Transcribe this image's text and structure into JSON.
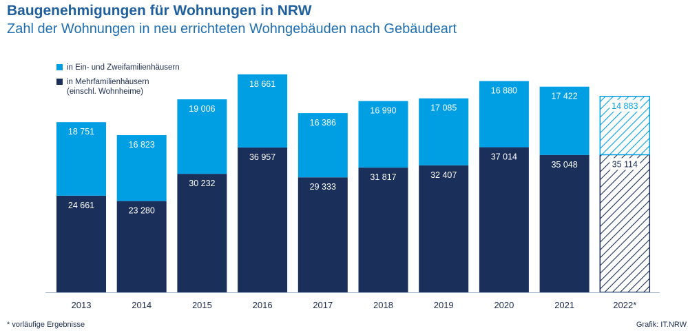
{
  "header": {
    "title": "Baugenehmigungen für Wohnungen in NRW",
    "subtitle": "Zahl der Wohnungen in neu errichteten Wohngebäuden nach Gebäudeart"
  },
  "legend": {
    "items": [
      {
        "label_lines": [
          "in Ein- und Zweifamilienhäusern"
        ],
        "color": "#009fe3"
      },
      {
        "label_lines": [
          "in Mehrfamilienhäusern",
          "(einschl. Wohnheime)"
        ],
        "color": "#1b2f5b"
      }
    ]
  },
  "footer": {
    "footnote": "* vorläufige Ergebnisse",
    "source": "Grafik: IT.NRW"
  },
  "chart_data": {
    "type": "bar",
    "stacked": true,
    "categories": [
      "2013",
      "2014",
      "2015",
      "2016",
      "2017",
      "2018",
      "2019",
      "2020",
      "2021",
      "2022*"
    ],
    "data_labels": {
      "Ein- und Zweifamilienhäuser": [
        "18 751",
        "16 823",
        "19 006",
        "18 661",
        "16 386",
        "16 990",
        "17 085",
        "16 880",
        "17 422",
        "14 883"
      ],
      "Mehrfamilienhäuser": [
        "24 661",
        "23 280",
        "30 232",
        "36 957",
        "29 333",
        "31 817",
        "32 407",
        "37 014",
        "35 048",
        "35 114"
      ]
    },
    "series": [
      {
        "name": "in Ein- und Zweifamilienhäusern",
        "color": "#009fe3",
        "values": [
          18751,
          16823,
          19006,
          18661,
          16386,
          16990,
          17085,
          16880,
          17422,
          14883
        ]
      },
      {
        "name": "in Mehrfamilienhäusern (einschl. Wohnheime)",
        "color": "#1b2f5b",
        "values": [
          24661,
          23280,
          30232,
          36957,
          29333,
          31817,
          32407,
          37014,
          35048,
          35114
        ]
      }
    ],
    "provisional_categories": [
      "2022*"
    ],
    "grid": false,
    "legend_position": "top-left"
  }
}
